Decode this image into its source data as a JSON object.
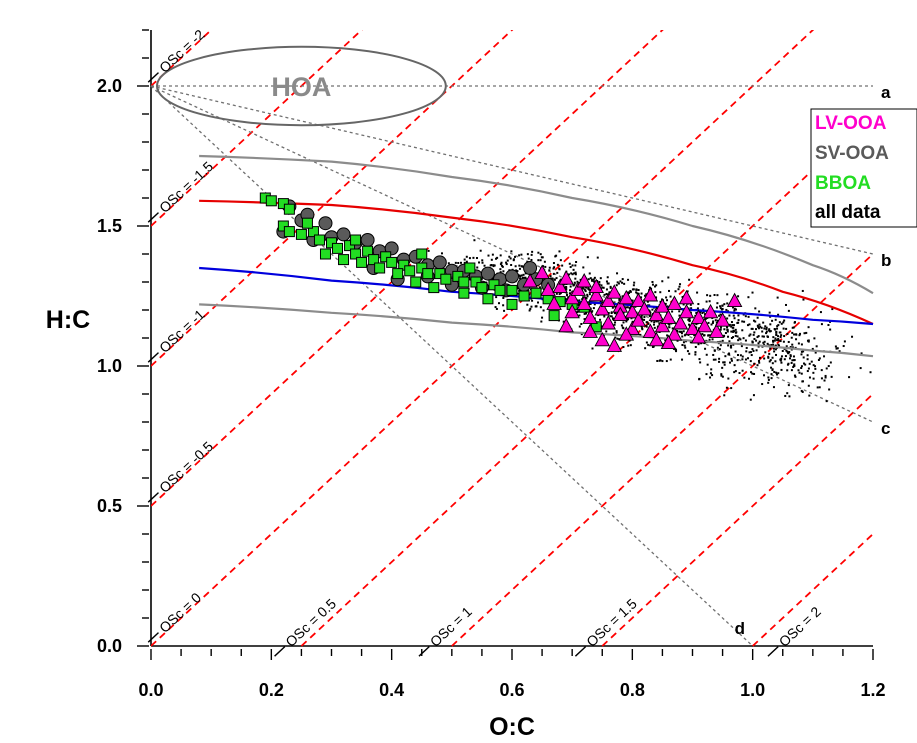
{
  "colors": {
    "background": "#ffffff",
    "axis": "#000000",
    "os_lines": "#ff0000",
    "ref_lines": "#707070",
    "red_curve": "#e60000",
    "blue_curve": "#0000dd",
    "gray_curves": "#8c8c8c",
    "hoa": "#666666",
    "lv_ooa": "#ff00cc",
    "sv_ooa": "#5a5a5a",
    "bboa": "#22dd22",
    "all_data": "#000000"
  },
  "chart_data": {
    "type": "scatter",
    "title": "",
    "xlabel": "O:C",
    "ylabel": "H:C",
    "xlim": [
      0,
      1.2
    ],
    "ylim": [
      0,
      2.2
    ],
    "x_ticks": [
      "0.0",
      "0.2",
      "0.4",
      "0.6",
      "0.8",
      "1.0",
      "1.2"
    ],
    "y_ticks": [
      "0.0",
      "0.5",
      "1.0",
      "1.5",
      "2.0"
    ],
    "grid": false,
    "legend_position": "top-right",
    "legend": [
      {
        "label": "LV-OOA",
        "color": "#ff00cc"
      },
      {
        "label": "SV-OOA",
        "color": "#5a5a5a"
      },
      {
        "label": "BBOA",
        "color": "#22dd22"
      },
      {
        "label": "all data",
        "color": "#000000"
      }
    ],
    "os_lines": [
      {
        "os": -2,
        "label": "OSc = -2"
      },
      {
        "os": -1.5,
        "label": "OSc = -1.5"
      },
      {
        "os": -1,
        "label": "OSc = -1"
      },
      {
        "os": -0.5,
        "label": "OSc = -0.5"
      },
      {
        "os": 0,
        "label": "OSc = 0"
      },
      {
        "os": 0.5,
        "label": "OSc = 0.5"
      },
      {
        "os": 1,
        "label": "OSc = 1"
      },
      {
        "os": 1.5,
        "label": "OSc = 1.5"
      },
      {
        "os": 2,
        "label": "OSc = 2"
      }
    ],
    "reference_lines": [
      {
        "label": "a",
        "x": [
          0,
          1.2
        ],
        "y": [
          2.0,
          2.0
        ]
      },
      {
        "label": "b",
        "x": [
          0,
          1.2
        ],
        "y": [
          2.0,
          1.4
        ]
      },
      {
        "label": "c",
        "x": [
          0,
          1.2
        ],
        "y": [
          2.0,
          0.8
        ]
      },
      {
        "label": "d",
        "x": [
          0,
          1.0
        ],
        "y": [
          2.0,
          0.0
        ]
      }
    ],
    "curves": [
      {
        "color": "#e60000",
        "x": [
          0.08,
          0.3,
          0.5,
          0.7,
          0.9,
          1.05,
          1.2
        ],
        "y": [
          1.59,
          1.575,
          1.53,
          1.46,
          1.36,
          1.265,
          1.15
        ]
      },
      {
        "color": "#0000dd",
        "x": [
          0.08,
          0.3,
          0.5,
          0.7,
          0.9,
          1.1,
          1.2
        ],
        "y": [
          1.35,
          1.305,
          1.265,
          1.23,
          1.2,
          1.165,
          1.15
        ]
      },
      {
        "color": "#8c8c8c",
        "x": [
          0.08,
          0.3,
          0.5,
          0.7,
          0.9,
          1.1,
          1.2
        ],
        "y": [
          1.75,
          1.73,
          1.675,
          1.6,
          1.5,
          1.36,
          1.26
        ]
      },
      {
        "color": "#8c8c8c",
        "x": [
          0.08,
          0.3,
          0.5,
          0.7,
          0.9,
          1.1,
          1.2
        ],
        "y": [
          1.22,
          1.19,
          1.155,
          1.12,
          1.09,
          1.055,
          1.035
        ]
      }
    ],
    "hoa_region": {
      "label": "HOA",
      "cx": 0.25,
      "cy": 2.0,
      "rx": 0.24,
      "ry": 0.14
    },
    "series": [
      {
        "name": "LV-OOA",
        "marker": "triangle",
        "points": [
          [
            0.63,
            1.3
          ],
          [
            0.65,
            1.33
          ],
          [
            0.66,
            1.27
          ],
          [
            0.67,
            1.22
          ],
          [
            0.68,
            1.28
          ],
          [
            0.69,
            1.31
          ],
          [
            0.7,
            1.24
          ],
          [
            0.7,
            1.19
          ],
          [
            0.71,
            1.27
          ],
          [
            0.72,
            1.3
          ],
          [
            0.72,
            1.22
          ],
          [
            0.73,
            1.17
          ],
          [
            0.74,
            1.25
          ],
          [
            0.74,
            1.28
          ],
          [
            0.75,
            1.2
          ],
          [
            0.76,
            1.23
          ],
          [
            0.76,
            1.15
          ],
          [
            0.77,
            1.26
          ],
          [
            0.78,
            1.21
          ],
          [
            0.78,
            1.18
          ],
          [
            0.79,
            1.24
          ],
          [
            0.8,
            1.19
          ],
          [
            0.8,
            1.13
          ],
          [
            0.81,
            1.23
          ],
          [
            0.81,
            1.16
          ],
          [
            0.82,
            1.2
          ],
          [
            0.83,
            1.25
          ],
          [
            0.83,
            1.12
          ],
          [
            0.84,
            1.18
          ],
          [
            0.85,
            1.21
          ],
          [
            0.85,
            1.14
          ],
          [
            0.86,
            1.17
          ],
          [
            0.87,
            1.22
          ],
          [
            0.87,
            1.11
          ],
          [
            0.88,
            1.15
          ],
          [
            0.89,
            1.19
          ],
          [
            0.89,
            1.24
          ],
          [
            0.9,
            1.13
          ],
          [
            0.91,
            1.17
          ],
          [
            0.92,
            1.14
          ],
          [
            0.93,
            1.19
          ],
          [
            0.94,
            1.12
          ],
          [
            0.95,
            1.16
          ],
          [
            0.97,
            1.23
          ],
          [
            0.91,
            1.1
          ],
          [
            0.86,
            1.08
          ],
          [
            0.75,
            1.09
          ],
          [
            0.79,
            1.11
          ],
          [
            0.69,
            1.14
          ],
          [
            0.73,
            1.12
          ],
          [
            0.77,
            1.07
          ],
          [
            0.84,
            1.09
          ]
        ]
      },
      {
        "name": "SV-OOA",
        "marker": "circle",
        "points": [
          [
            0.23,
            1.57
          ],
          [
            0.25,
            1.52
          ],
          [
            0.26,
            1.54
          ],
          [
            0.29,
            1.51
          ],
          [
            0.3,
            1.46
          ],
          [
            0.32,
            1.47
          ],
          [
            0.34,
            1.44
          ],
          [
            0.36,
            1.45
          ],
          [
            0.38,
            1.41
          ],
          [
            0.4,
            1.42
          ],
          [
            0.42,
            1.38
          ],
          [
            0.44,
            1.39
          ],
          [
            0.46,
            1.36
          ],
          [
            0.48,
            1.37
          ],
          [
            0.5,
            1.34
          ],
          [
            0.52,
            1.34
          ],
          [
            0.54,
            1.32
          ],
          [
            0.56,
            1.33
          ],
          [
            0.58,
            1.31
          ],
          [
            0.6,
            1.32
          ],
          [
            0.62,
            1.29
          ],
          [
            0.64,
            1.31
          ],
          [
            0.66,
            1.29
          ],
          [
            0.5,
            1.29
          ],
          [
            0.46,
            1.32
          ],
          [
            0.55,
            1.28
          ],
          [
            0.59,
            1.27
          ],
          [
            0.63,
            1.35
          ],
          [
            0.27,
            1.45
          ],
          [
            0.22,
            1.48
          ],
          [
            0.41,
            1.31
          ],
          [
            0.37,
            1.35
          ]
        ]
      },
      {
        "name": "BBOA",
        "marker": "square",
        "points": [
          [
            0.19,
            1.6
          ],
          [
            0.2,
            1.59
          ],
          [
            0.22,
            1.58
          ],
          [
            0.23,
            1.56
          ],
          [
            0.22,
            1.5
          ],
          [
            0.23,
            1.48
          ],
          [
            0.25,
            1.47
          ],
          [
            0.27,
            1.48
          ],
          [
            0.28,
            1.45
          ],
          [
            0.3,
            1.44
          ],
          [
            0.31,
            1.42
          ],
          [
            0.33,
            1.43
          ],
          [
            0.34,
            1.4
          ],
          [
            0.36,
            1.41
          ],
          [
            0.37,
            1.38
          ],
          [
            0.39,
            1.39
          ],
          [
            0.4,
            1.37
          ],
          [
            0.42,
            1.36
          ],
          [
            0.43,
            1.34
          ],
          [
            0.45,
            1.35
          ],
          [
            0.46,
            1.33
          ],
          [
            0.48,
            1.33
          ],
          [
            0.49,
            1.31
          ],
          [
            0.51,
            1.32
          ],
          [
            0.52,
            1.3
          ],
          [
            0.54,
            1.3
          ],
          [
            0.55,
            1.28
          ],
          [
            0.57,
            1.29
          ],
          [
            0.58,
            1.27
          ],
          [
            0.6,
            1.27
          ],
          [
            0.62,
            1.25
          ],
          [
            0.64,
            1.26
          ],
          [
            0.66,
            1.24
          ],
          [
            0.68,
            1.23
          ],
          [
            0.7,
            1.22
          ],
          [
            0.72,
            1.21
          ],
          [
            0.52,
            1.26
          ],
          [
            0.47,
            1.28
          ],
          [
            0.41,
            1.33
          ],
          [
            0.35,
            1.37
          ],
          [
            0.29,
            1.4
          ],
          [
            0.32,
            1.38
          ],
          [
            0.38,
            1.35
          ],
          [
            0.44,
            1.3
          ],
          [
            0.56,
            1.24
          ],
          [
            0.6,
            1.22
          ],
          [
            0.67,
            1.18
          ],
          [
            0.74,
            1.14
          ],
          [
            0.26,
            1.51
          ],
          [
            0.34,
            1.45
          ],
          [
            0.45,
            1.4
          ],
          [
            0.53,
            1.35
          ]
        ]
      }
    ],
    "scatter_cloud": {
      "name": "all data",
      "center_x": [
        0.55,
        1.1
      ],
      "center_y": [
        1.36,
        1.02
      ],
      "spread_x": 0.08,
      "spread_y": 0.06
    }
  }
}
